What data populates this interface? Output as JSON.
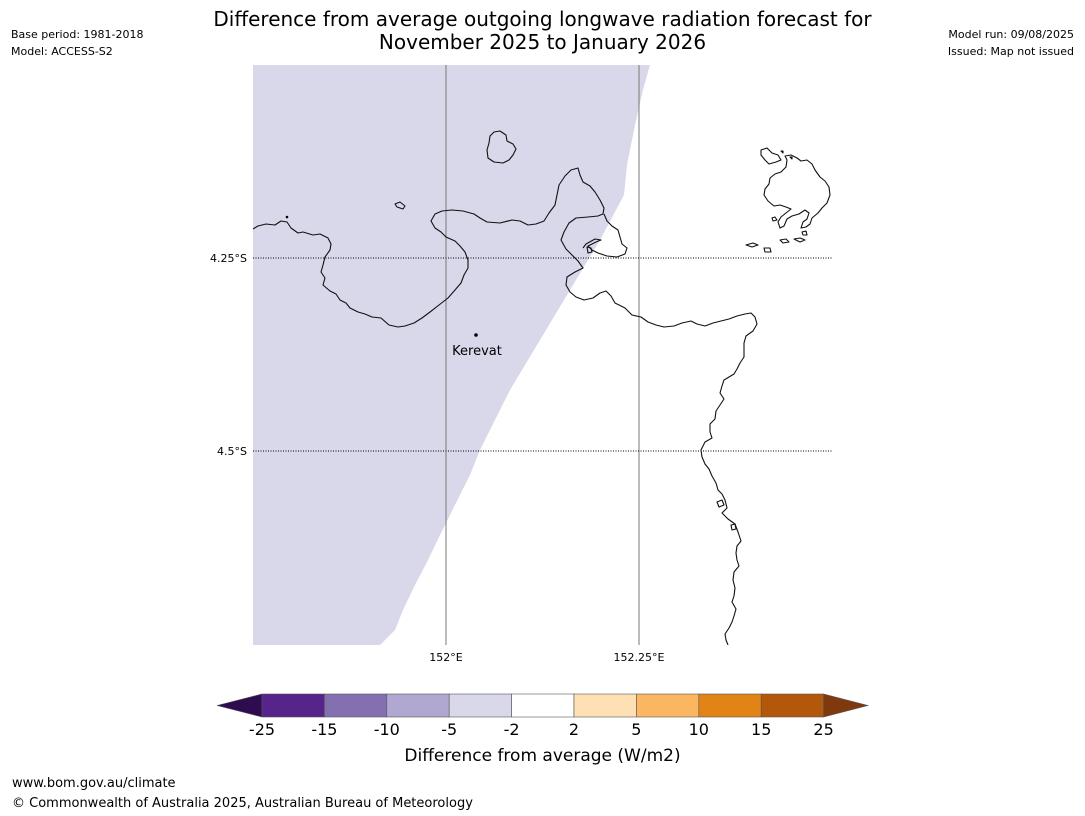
{
  "header": {
    "title_line1": "Difference from average outgoing longwave radiation forecast for",
    "title_line2": "November 2025 to January 2026",
    "base_period": "Base period: 1981-2018",
    "model": "Model: ACCESS-S2",
    "model_run": "Model run: 09/08/2025",
    "issued": "Issued: Map not issued"
  },
  "map": {
    "place_label": "Kerevat",
    "lat_labels": [
      "4.25°S",
      "4.5°S"
    ],
    "lon_labels": [
      "152°E",
      "152.25°E"
    ],
    "shaded_category": "-5 to -2"
  },
  "colorbar": {
    "tick_labels": [
      "-25",
      "-15",
      "-10",
      "-5",
      "-2",
      "2",
      "5",
      "10",
      "15",
      "25"
    ],
    "label": "Difference from average (W/m2)",
    "colors": {
      "below_-25": "#2d0c4f",
      "-25_-15": "#57248b",
      "-15_-10": "#8470b0",
      "-10_-5": "#b1a8d1",
      "-5_-2": "#d8d8ea",
      "-2_2": "#ffffff",
      "2_5": "#fee0b4",
      "5_10": "#fbb661",
      "10_15": "#e28316",
      "15_25": "#b3580a",
      "above_25": "#7e3a0e"
    }
  },
  "footer": {
    "url": "www.bom.gov.au/climate",
    "copyright": "© Commonwealth of Australia 2025, Australian Bureau of Meteorology"
  }
}
